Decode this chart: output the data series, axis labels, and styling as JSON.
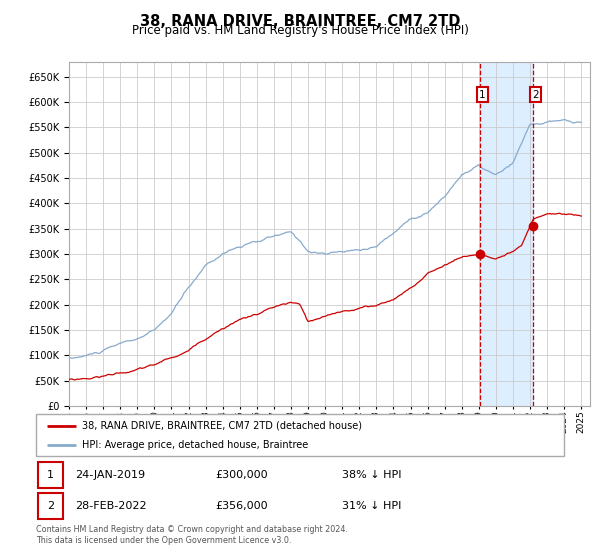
{
  "title": "38, RANA DRIVE, BRAINTREE, CM7 2TD",
  "subtitle": "Price paid vs. HM Land Registry's House Price Index (HPI)",
  "title_fontsize": 10.5,
  "subtitle_fontsize": 8.5,
  "legend_label_red": "38, RANA DRIVE, BRAINTREE, CM7 2TD (detached house)",
  "legend_label_blue": "HPI: Average price, detached house, Braintree",
  "transaction1_date": "24-JAN-2019",
  "transaction1_price": 300000,
  "transaction1_pct": "38% ↓ HPI",
  "transaction1_year": 2019.07,
  "transaction1_val_red": 300000,
  "transaction2_date": "28-FEB-2022",
  "transaction2_price": 356000,
  "transaction2_pct": "31% ↓ HPI",
  "transaction2_year": 2022.17,
  "transaction2_val_red": 356000,
  "footer": "Contains HM Land Registry data © Crown copyright and database right 2024.\nThis data is licensed under the Open Government Licence v3.0.",
  "red_color": "#cc0000",
  "blue_color": "#88aacc",
  "background_color": "#ffffff",
  "grid_color": "#cccccc",
  "highlight_bg": "#ddeeff",
  "ylim": [
    0,
    680000
  ],
  "yticks": [
    0,
    50000,
    100000,
    150000,
    200000,
    250000,
    300000,
    350000,
    400000,
    450000,
    500000,
    550000,
    600000,
    650000
  ],
  "xmin": 1995,
  "xmax": 2025.5
}
